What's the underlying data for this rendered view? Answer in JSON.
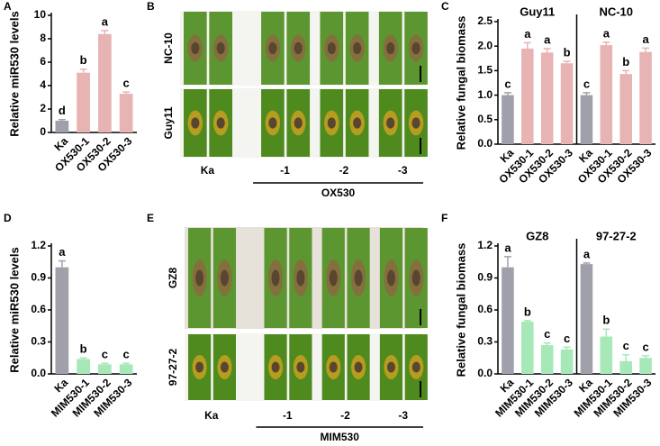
{
  "chart_data": [
    {
      "type": "bar",
      "panel": "A",
      "ylabel": "Relative miR530 levels",
      "ylim": [
        0,
        10
      ],
      "yticks": [
        0,
        2,
        4,
        6,
        8,
        10
      ],
      "groups": [
        {
          "categories": [
            "Ka",
            "OX530-1",
            "OX530-2",
            "OX530-3"
          ],
          "values": [
            1.0,
            5.1,
            8.4,
            3.3
          ],
          "errors": [
            0.1,
            0.3,
            0.3,
            0.15
          ],
          "annotations": [
            "d",
            "b",
            "a",
            "c"
          ],
          "colors": [
            "#a0a0aa",
            "#e8b3b3",
            "#e8b3b3",
            "#e8b3b3"
          ]
        }
      ]
    },
    {
      "type": "bar",
      "panel": "C",
      "ylabel": "Relative fungal biomass",
      "ylim": [
        0,
        2.5
      ],
      "yticks": [
        {
          "value": 0,
          "label": "0.0"
        },
        0.5,
        {
          "value": 1,
          "label": "1.0"
        },
        1.5,
        {
          "value": 2,
          "label": "2.0"
        },
        2.5
      ],
      "groups": [
        {
          "title": "Guy11",
          "categories": [
            "Ka",
            "OX530-1",
            "OX530-2",
            "OX530-3"
          ],
          "values": [
            1.0,
            1.95,
            1.87,
            1.65
          ],
          "errors": [
            0.05,
            0.12,
            0.08,
            0.04
          ],
          "annotations": [
            "c",
            "a",
            "a",
            "b"
          ],
          "colors": [
            "#a0a0aa",
            "#e8b3b3",
            "#e8b3b3",
            "#e8b3b3"
          ]
        },
        {
          "title": "NC-10",
          "categories": [
            "Ka",
            "OX530-1",
            "OX530-2",
            "OX530-3"
          ],
          "values": [
            1.0,
            2.02,
            1.43,
            1.88
          ],
          "errors": [
            0.05,
            0.06,
            0.07,
            0.08
          ],
          "annotations": [
            "c",
            "a",
            "b",
            "a"
          ],
          "colors": [
            "#a0a0aa",
            "#e8b3b3",
            "#e8b3b3",
            "#e8b3b3"
          ]
        }
      ]
    },
    {
      "type": "bar",
      "panel": "D",
      "ylabel": "Relative miR530 levels",
      "ylim": [
        0,
        1.2
      ],
      "yticks": [
        {
          "value": 0,
          "label": "0.0"
        },
        0.3,
        0.6,
        0.9,
        1.2
      ],
      "groups": [
        {
          "categories": [
            "Ka",
            "MIM530-1",
            "MIM530-2",
            "MIM530-3"
          ],
          "values": [
            1.0,
            0.14,
            0.09,
            0.09
          ],
          "errors": [
            0.06,
            0.01,
            0.01,
            0.01
          ],
          "annotations": [
            "a",
            "b",
            "c",
            "c"
          ],
          "colors": [
            "#a0a0aa",
            "#a6e8b8",
            "#a6e8b8",
            "#a6e8b8"
          ]
        }
      ]
    },
    {
      "type": "bar",
      "panel": "F",
      "ylabel": "Relative fungal biomass",
      "ylim": [
        0,
        1.2
      ],
      "yticks": [
        {
          "value": 0,
          "label": "0.0"
        },
        0.3,
        0.6,
        0.9,
        1.2
      ],
      "groups": [
        {
          "title": "GZ8",
          "categories": [
            "Ka",
            "MIM530-1",
            "MIM530-2",
            "MIM530-3"
          ],
          "values": [
            1.0,
            0.49,
            0.27,
            0.23
          ],
          "errors": [
            0.1,
            0.01,
            0.02,
            0.02
          ],
          "annotations": [
            "a",
            "b",
            "c",
            "c"
          ],
          "colors": [
            "#a0a0aa",
            "#a6e8b8",
            "#a6e8b8",
            "#a6e8b8"
          ]
        },
        {
          "title": "97-27-2",
          "categories": [
            "Ka",
            "MIM530-1",
            "MIM530-2",
            "MIM530-3"
          ],
          "values": [
            1.03,
            0.35,
            0.12,
            0.15
          ],
          "errors": [
            0.01,
            0.07,
            0.06,
            0.02
          ],
          "annotations": [
            "a",
            "b",
            "c",
            "c"
          ],
          "colors": [
            "#a0a0aa",
            "#a6e8b8",
            "#a6e8b8",
            "#a6e8b8"
          ]
        }
      ]
    }
  ],
  "photos": [
    {
      "panel": "B",
      "rows": [
        "NC-10",
        "Guy11"
      ],
      "labels": [
        "Ka",
        "-1",
        "-2",
        "-3"
      ],
      "group_label": "OX530"
    },
    {
      "panel": "E",
      "rows": [
        "GZ8",
        "97-27-2"
      ],
      "labels": [
        "Ka",
        "-1",
        "-2",
        "-3"
      ],
      "group_label": "MIM530"
    }
  ]
}
